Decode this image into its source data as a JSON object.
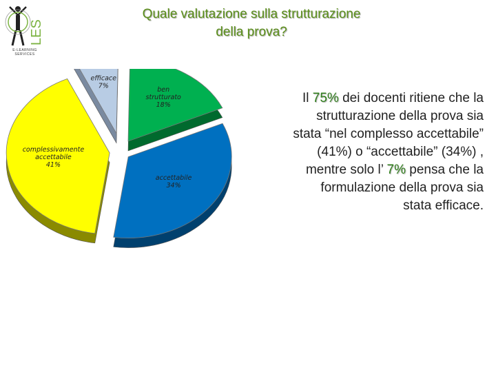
{
  "header": {
    "logo_letters": "LES",
    "logo_caption": "E-LEARNING SERVICES",
    "title_line1": "Quale valutazione sulla strutturazione",
    "title_line2": "della prova?"
  },
  "colors": {
    "title": "#5b8f1a",
    "highlight": "#2e7d1a"
  },
  "chart_data": {
    "type": "pie",
    "title": "",
    "categories": [
      "complessivamente accettabile",
      "efficace",
      "ben strutturato",
      "accettabile"
    ],
    "values": [
      41,
      7,
      18,
      34
    ],
    "labels": [
      {
        "lines": [
          "complessivamente",
          "accettabile"
        ],
        "pct": "41%"
      },
      {
        "lines": [
          "efficace"
        ],
        "pct": "7%"
      },
      {
        "lines": [
          "ben",
          "strutturato"
        ],
        "pct": "18%"
      },
      {
        "lines": [
          "accettabile"
        ],
        "pct": "34%"
      }
    ],
    "colors": [
      "#ffff00",
      "#b8cce4",
      "#00b050",
      "#0070c0"
    ],
    "side_colors": [
      "#8a8a00",
      "#7a8aa0",
      "#006a2e",
      "#00406e"
    ],
    "style": "3d-exploded",
    "legend": "none"
  },
  "summary": {
    "p1": "Il ",
    "h1": "75%",
    "p2": " dei docenti  ritiene che la strutturazione della prova sia stata  “nel complesso accettabile” (41%) o “accettabile” (34%) , mentre solo l’ ",
    "h2": "7%",
    "p3": " pensa che la formulazione della prova sia stata efficace."
  }
}
